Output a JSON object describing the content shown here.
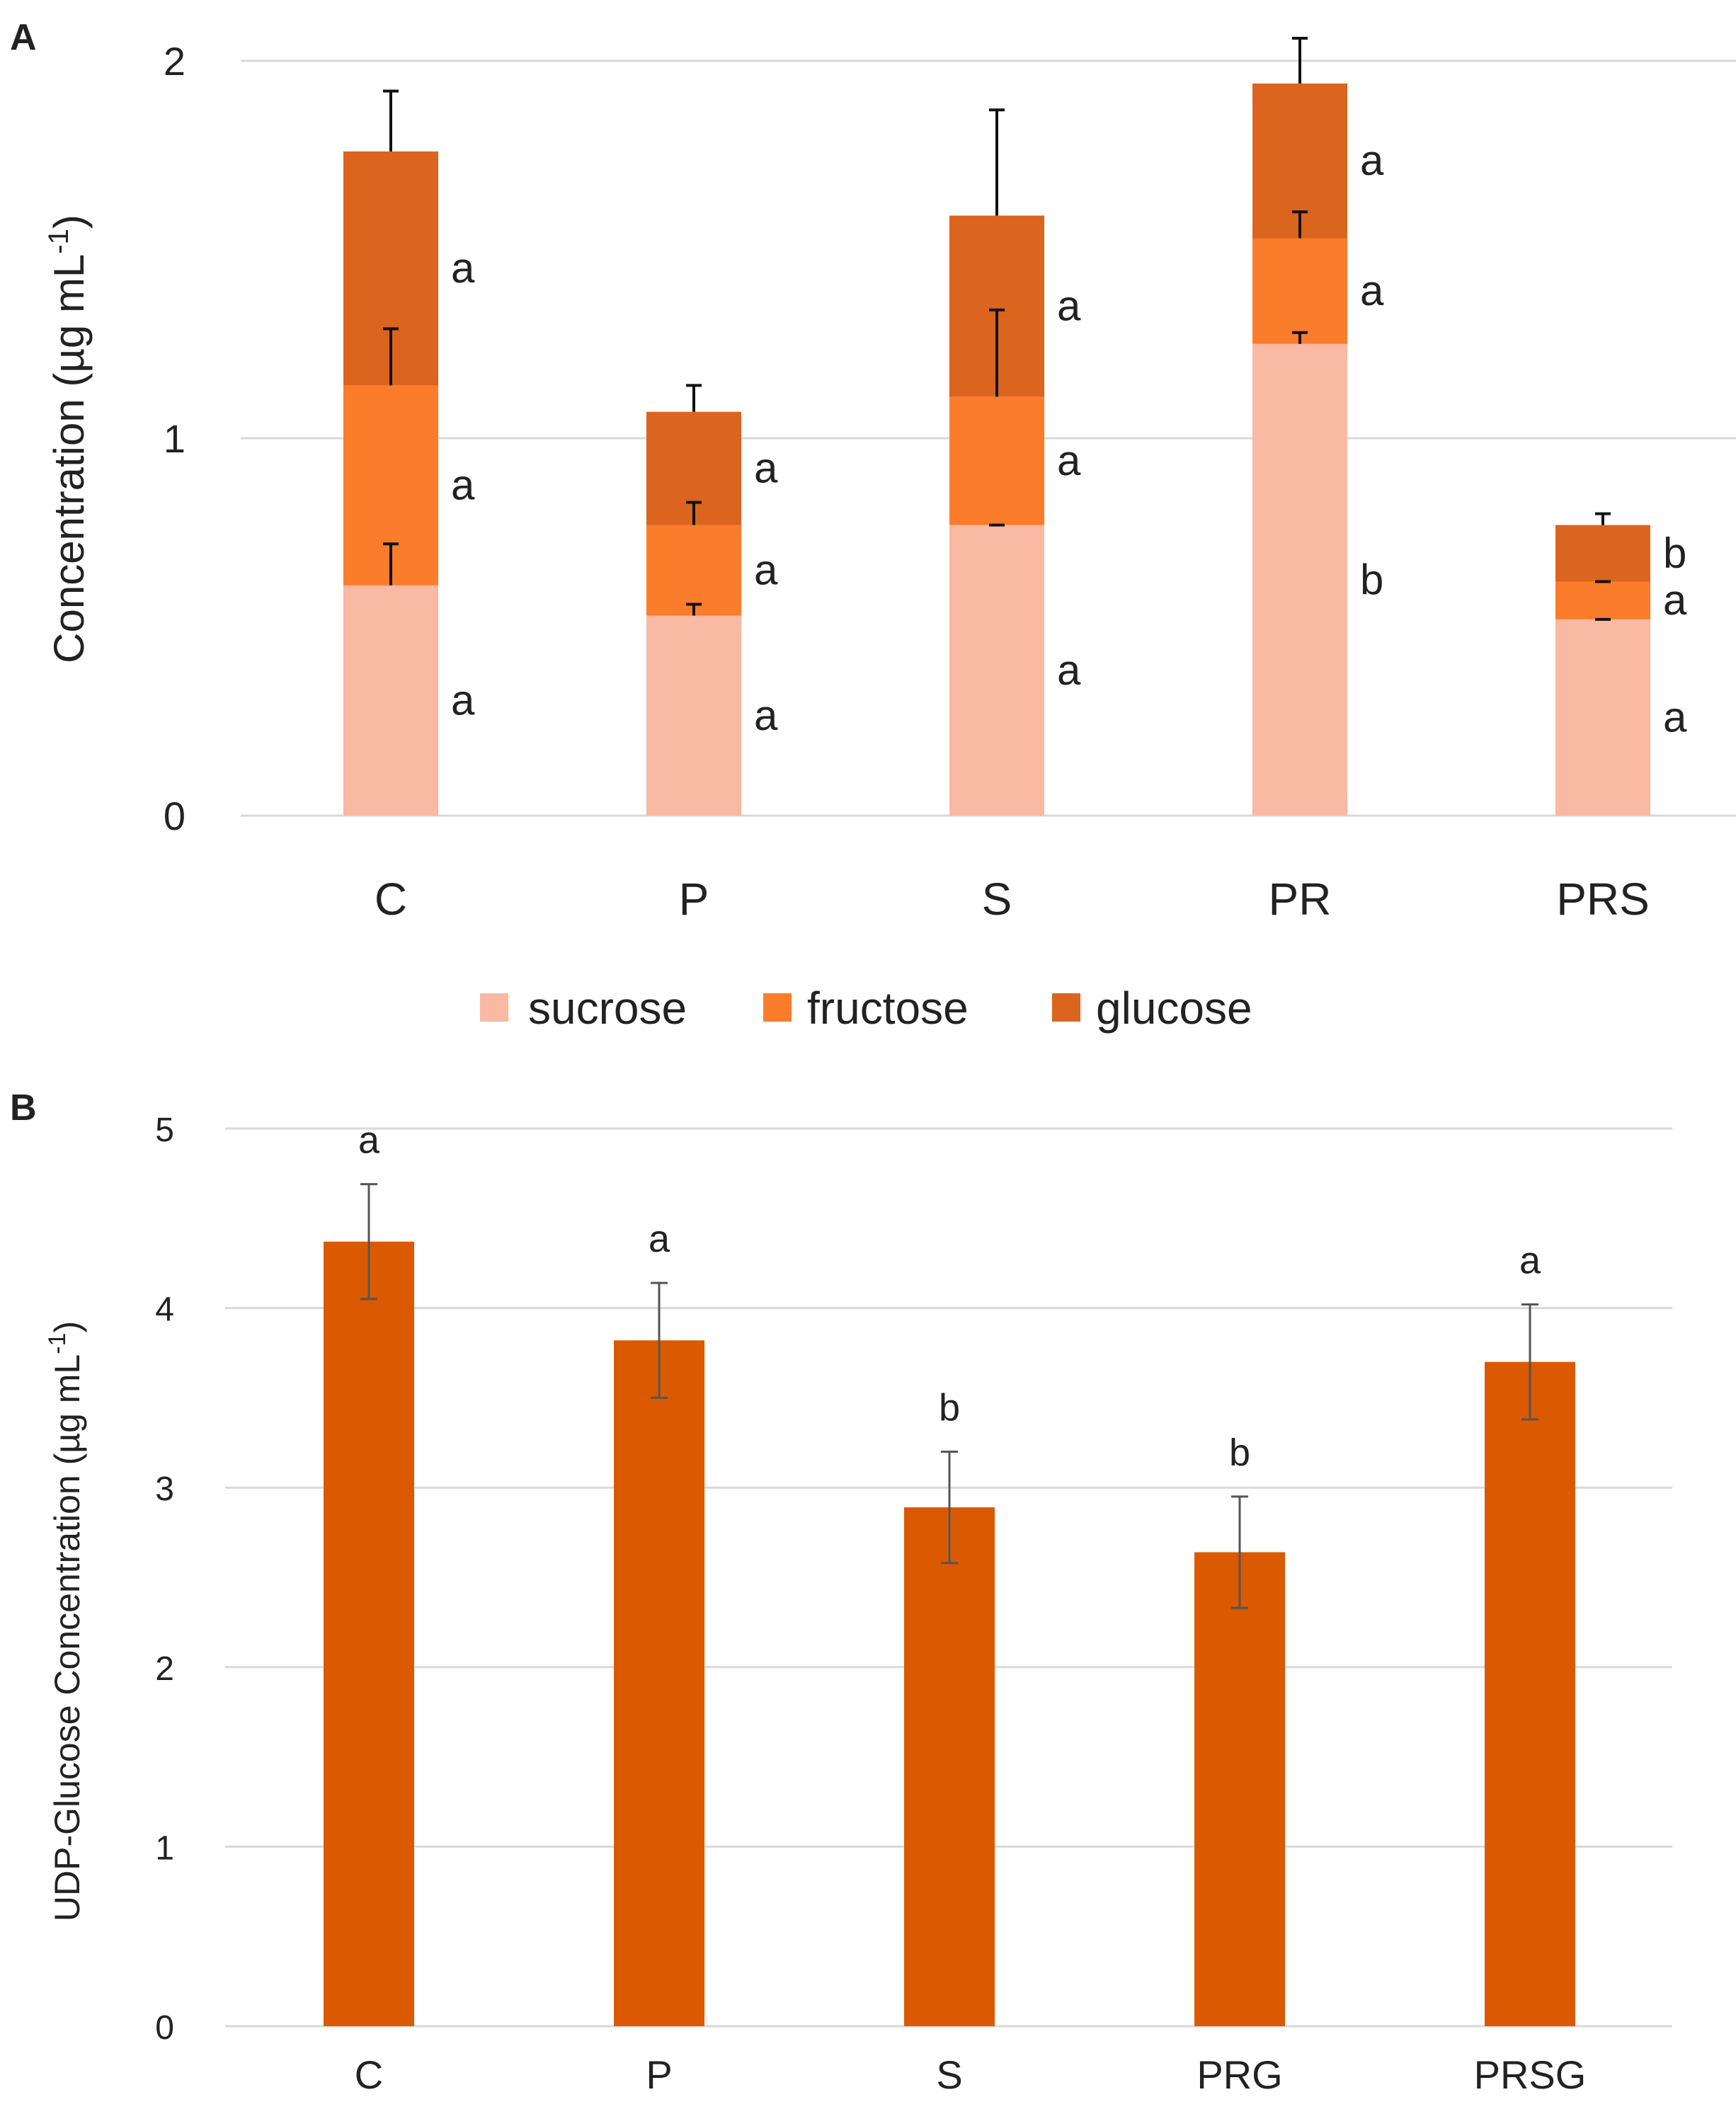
{
  "chart_data": [
    {
      "panel": "A",
      "type": "bar",
      "stacked": true,
      "title": "",
      "xlabel": "",
      "ylabel": "Concentration (µg mL-1)",
      "ylabel_main": "Concentration (µg mL",
      "ylabel_sup": "-1",
      "ylabel_close": ")",
      "ylim": [
        0,
        2
      ],
      "yticks": [
        0,
        1,
        2
      ],
      "grid": true,
      "legend_position": "bottom-center",
      "categories": [
        "C",
        "P",
        "S",
        "PR",
        "PRS"
      ],
      "series": [
        {
          "name": "sucrose",
          "color": "#F9B9A2",
          "values": [
            0.61,
            0.53,
            0.77,
            1.25,
            0.52
          ],
          "errors": [
            0.11,
            0.03,
            0.0,
            0.03,
            0.0
          ],
          "letters": [
            "a",
            "a",
            "a",
            "b",
            "a"
          ]
        },
        {
          "name": "fructose",
          "color": "#FB7C2A",
          "values": [
            0.53,
            0.24,
            0.34,
            0.28,
            0.1
          ],
          "errors": [
            0.15,
            0.06,
            0.23,
            0.07,
            0.0
          ],
          "letters": [
            "a",
            "a",
            "a",
            "a",
            "a"
          ]
        },
        {
          "name": "glucose",
          "color": "#DB641E",
          "values": [
            0.62,
            0.3,
            0.48,
            0.41,
            0.15
          ],
          "errors": [
            0.16,
            0.07,
            0.28,
            0.12,
            0.03
          ],
          "letters": [
            "a",
            "a",
            "a",
            "a",
            "b"
          ]
        }
      ]
    },
    {
      "panel": "B",
      "type": "bar",
      "title": "",
      "xlabel": "",
      "ylabel": "UDP-Glucose  Concentration (µg mL-1)",
      "ylabel_main": "UDP-Glucose  Concentration (µg mL",
      "ylabel_sup": "-1",
      "ylabel_close": ")",
      "ylim": [
        0,
        5
      ],
      "yticks": [
        0,
        1,
        2,
        3,
        4,
        5
      ],
      "grid": true,
      "categories": [
        "C",
        "P",
        "S",
        "PRG",
        "PRSG"
      ],
      "color": "#DB5900",
      "values": [
        4.37,
        3.82,
        2.89,
        2.64,
        3.7
      ],
      "errors": [
        0.32,
        0.32,
        0.31,
        0.31,
        0.32
      ],
      "letters": [
        "a",
        "a",
        "b",
        "b",
        "a"
      ]
    }
  ]
}
